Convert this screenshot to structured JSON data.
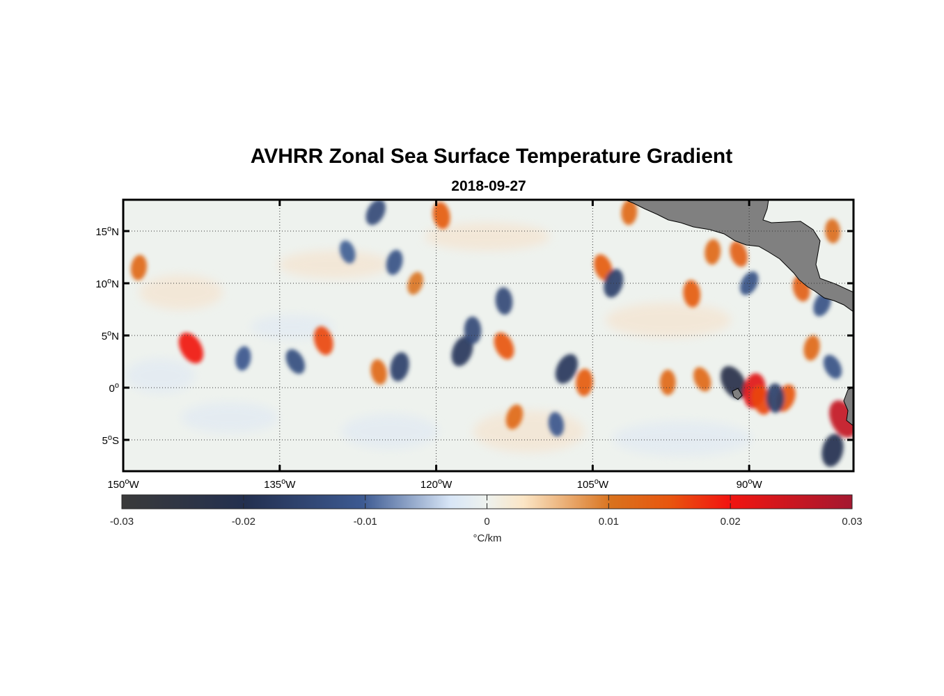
{
  "title": "AVHRR Zonal Sea Surface Temperature Gradient",
  "subtitle": "2018-09-27",
  "map": {
    "lon_range": [
      -150,
      -80
    ],
    "lat_range": [
      -8,
      18
    ],
    "x_ticks": [
      {
        "lon": -150,
        "deg": "150",
        "hem": "W"
      },
      {
        "lon": -135,
        "deg": "135",
        "hem": "W"
      },
      {
        "lon": -120,
        "deg": "120",
        "hem": "W"
      },
      {
        "lon": -105,
        "deg": "105",
        "hem": "W"
      },
      {
        "lon": -90,
        "deg": "90",
        "hem": "W"
      }
    ],
    "y_ticks": [
      {
        "lat": 15,
        "deg": "15",
        "hem": "N"
      },
      {
        "lat": 10,
        "deg": "10",
        "hem": "N"
      },
      {
        "lat": 5,
        "deg": "5",
        "hem": "N"
      },
      {
        "lat": 0,
        "deg": "0",
        "hem": ""
      },
      {
        "lat": -5,
        "deg": "5",
        "hem": "S"
      }
    ],
    "degree_symbol": "o",
    "grid": "dotted",
    "land_color": "#808080",
    "anomalies": [
      {
        "lon": -143.5,
        "lat": 3.8,
        "value": 0.02
      },
      {
        "lon": -148.5,
        "lat": 11.5,
        "value": 0.012
      },
      {
        "lon": -130.8,
        "lat": 4.5,
        "value": 0.016
      },
      {
        "lon": -117.5,
        "lat": 3.5,
        "value": -0.018
      },
      {
        "lon": -116.5,
        "lat": 5.5,
        "value": -0.014
      },
      {
        "lon": -113.5,
        "lat": 4.0,
        "value": 0.015
      },
      {
        "lon": -123.5,
        "lat": 2.0,
        "value": -0.016
      },
      {
        "lon": -125.5,
        "lat": 1.5,
        "value": 0.012
      },
      {
        "lon": -107.5,
        "lat": 1.8,
        "value": -0.018
      },
      {
        "lon": -105.8,
        "lat": 0.5,
        "value": 0.014
      },
      {
        "lon": -104,
        "lat": 11.5,
        "value": 0.014
      },
      {
        "lon": -103,
        "lat": 10.0,
        "value": -0.016
      },
      {
        "lon": -95.5,
        "lat": 9.0,
        "value": 0.014
      },
      {
        "lon": -91.5,
        "lat": 0.5,
        "value": -0.022
      },
      {
        "lon": -89.5,
        "lat": -0.3,
        "value": 0.022
      },
      {
        "lon": -88.8,
        "lat": -1.2,
        "value": 0.016
      },
      {
        "lon": -86.5,
        "lat": -1.0,
        "value": 0.015
      },
      {
        "lon": -87.5,
        "lat": -1.0,
        "value": -0.016
      },
      {
        "lon": -81.0,
        "lat": -3.0,
        "value": 0.026
      },
      {
        "lon": -82.0,
        "lat": -6.0,
        "value": -0.02
      },
      {
        "lon": -119.5,
        "lat": 16.5,
        "value": 0.014
      },
      {
        "lon": -125.8,
        "lat": 16.8,
        "value": -0.014
      },
      {
        "lon": -101.5,
        "lat": 16.8,
        "value": 0.012
      },
      {
        "lon": -91,
        "lat": 12.8,
        "value": 0.013
      },
      {
        "lon": -112.5,
        "lat": -2.8,
        "value": 0.012
      },
      {
        "lon": -113.5,
        "lat": 8.3,
        "value": -0.014
      },
      {
        "lon": -133.5,
        "lat": 2.5,
        "value": -0.013
      },
      {
        "lon": -138.5,
        "lat": 2.8,
        "value": -0.011
      },
      {
        "lon": -85.0,
        "lat": 9.5,
        "value": 0.013
      },
      {
        "lon": -83.0,
        "lat": 8.0,
        "value": -0.012
      },
      {
        "lon": -97.8,
        "lat": 0.5,
        "value": 0.012
      },
      {
        "lon": -94.5,
        "lat": 0.8,
        "value": 0.012
      },
      {
        "lon": -124.0,
        "lat": 12.0,
        "value": -0.012
      },
      {
        "lon": -108.5,
        "lat": -3.5,
        "value": -0.011
      },
      {
        "lon": -90.0,
        "lat": 10.0,
        "value": -0.012
      },
      {
        "lon": -93.5,
        "lat": 13.0,
        "value": 0.012
      },
      {
        "lon": -128.5,
        "lat": 13.0,
        "value": -0.01
      },
      {
        "lon": -122.0,
        "lat": 10.0,
        "value": 0.01
      },
      {
        "lon": -82.0,
        "lat": 15.0,
        "value": 0.011
      },
      {
        "lon": -82.0,
        "lat": 2.0,
        "value": -0.012
      },
      {
        "lon": -84.0,
        "lat": 3.8,
        "value": 0.012
      }
    ]
  },
  "colorbar": {
    "ticks": [
      "-0.03",
      "-0.02",
      "-0.01",
      "0",
      "0.01",
      "0.02",
      "0.03"
    ],
    "range": [
      -0.03,
      0.03
    ],
    "units": "°C/km",
    "colors": [
      "#3a3a3a",
      "#233050",
      "#3d5a92",
      "#d8e6f7",
      "#eef2ee",
      "#fbe6c6",
      "#d9721d",
      "#e8560f",
      "#f21510",
      "#a41830"
    ]
  }
}
